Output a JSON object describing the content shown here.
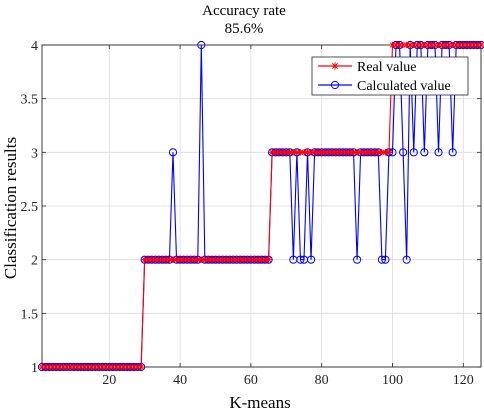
{
  "chart_data": {
    "type": "line",
    "title": "Accuracy rate",
    "subtitle": "85.6%",
    "xlabel": "K-means",
    "ylabel": "Classification results",
    "xlim": [
      1,
      125
    ],
    "ylim": [
      1,
      4
    ],
    "xticks": [
      20,
      40,
      60,
      80,
      100,
      120
    ],
    "yticks": [
      1,
      1.5,
      2,
      2.5,
      3,
      3.5,
      4
    ],
    "ytick_labels": [
      "1",
      "1.5",
      "2",
      "2.5",
      "3",
      "3.5",
      "4"
    ],
    "xtick_labels": [
      "20",
      "40",
      "60",
      "80",
      "100",
      "120"
    ],
    "grid": true,
    "legend_position": "top-right",
    "series": [
      {
        "name": "Real value",
        "color": "#ff0000",
        "marker": "asterisk",
        "x": [
          1,
          2,
          3,
          4,
          5,
          6,
          7,
          8,
          9,
          10,
          11,
          12,
          13,
          14,
          15,
          16,
          17,
          18,
          19,
          20,
          21,
          22,
          23,
          24,
          25,
          26,
          27,
          28,
          29,
          30,
          31,
          32,
          33,
          34,
          35,
          36,
          37,
          38,
          39,
          40,
          41,
          42,
          43,
          44,
          45,
          46,
          47,
          48,
          49,
          50,
          51,
          52,
          53,
          54,
          55,
          56,
          57,
          58,
          59,
          60,
          61,
          62,
          63,
          64,
          65,
          66,
          67,
          68,
          69,
          70,
          71,
          72,
          73,
          74,
          75,
          76,
          77,
          78,
          79,
          80,
          81,
          82,
          83,
          84,
          85,
          86,
          87,
          88,
          89,
          90,
          91,
          92,
          93,
          94,
          95,
          96,
          97,
          98,
          99,
          100,
          101,
          102,
          103,
          104,
          105,
          106,
          107,
          108,
          109,
          110,
          111,
          112,
          113,
          114,
          115,
          116,
          117,
          118,
          119,
          120,
          121,
          122,
          123,
          124,
          125
        ],
        "y": [
          1,
          1,
          1,
          1,
          1,
          1,
          1,
          1,
          1,
          1,
          1,
          1,
          1,
          1,
          1,
          1,
          1,
          1,
          1,
          1,
          1,
          1,
          1,
          1,
          1,
          1,
          1,
          1,
          1,
          2,
          2,
          2,
          2,
          2,
          2,
          2,
          2,
          2,
          2,
          2,
          2,
          2,
          2,
          2,
          2,
          2,
          2,
          2,
          2,
          2,
          2,
          2,
          2,
          2,
          2,
          2,
          2,
          2,
          2,
          2,
          2,
          2,
          2,
          2,
          2,
          3,
          3,
          3,
          3,
          3,
          3,
          3,
          3,
          3,
          3,
          3,
          3,
          3,
          3,
          3,
          3,
          3,
          3,
          3,
          3,
          3,
          3,
          3,
          3,
          3,
          3,
          3,
          3,
          3,
          3,
          3,
          3,
          3,
          3,
          4,
          4,
          4,
          4,
          4,
          4,
          4,
          4,
          4,
          4,
          4,
          4,
          4,
          4,
          4,
          4,
          4,
          4,
          4,
          4,
          4,
          4,
          4,
          4,
          4,
          4
        ]
      },
      {
        "name": "Calculated value",
        "color": "#0000ff",
        "marker": "circle",
        "x": [
          1,
          2,
          3,
          4,
          5,
          6,
          7,
          8,
          9,
          10,
          11,
          12,
          13,
          14,
          15,
          16,
          17,
          18,
          19,
          20,
          21,
          22,
          23,
          24,
          25,
          26,
          27,
          28,
          29,
          30,
          31,
          32,
          33,
          34,
          35,
          36,
          37,
          38,
          39,
          40,
          41,
          42,
          43,
          44,
          45,
          46,
          47,
          48,
          49,
          50,
          51,
          52,
          53,
          54,
          55,
          56,
          57,
          58,
          59,
          60,
          61,
          62,
          63,
          64,
          65,
          66,
          67,
          68,
          69,
          70,
          71,
          72,
          73,
          74,
          75,
          76,
          77,
          78,
          79,
          80,
          81,
          82,
          83,
          84,
          85,
          86,
          87,
          88,
          89,
          90,
          91,
          92,
          93,
          94,
          95,
          96,
          97,
          98,
          99,
          100,
          101,
          102,
          103,
          104,
          105,
          106,
          107,
          108,
          109,
          110,
          111,
          112,
          113,
          114,
          115,
          116,
          117,
          118,
          119,
          120,
          121,
          122,
          123,
          124,
          125
        ],
        "y": [
          1,
          1,
          1,
          1,
          1,
          1,
          1,
          1,
          1,
          1,
          1,
          1,
          1,
          1,
          1,
          1,
          1,
          1,
          1,
          1,
          1,
          1,
          1,
          1,
          1,
          1,
          1,
          1,
          1,
          2,
          2,
          2,
          2,
          2,
          2,
          2,
          2,
          3,
          2,
          2,
          2,
          2,
          2,
          2,
          2,
          4,
          2,
          2,
          2,
          2,
          2,
          2,
          2,
          2,
          2,
          2,
          2,
          2,
          2,
          2,
          2,
          2,
          2,
          2,
          2,
          3,
          3,
          3,
          3,
          3,
          3,
          2,
          3,
          2,
          2,
          3,
          2,
          3,
          3,
          3,
          3,
          3,
          3,
          3,
          3,
          3,
          3,
          3,
          3,
          2,
          3,
          3,
          3,
          3,
          3,
          3,
          2,
          2,
          3,
          3,
          4,
          4,
          3,
          2,
          4,
          3,
          4,
          4,
          3,
          4,
          4,
          4,
          3,
          4,
          4,
          4,
          3,
          4,
          4,
          4,
          4,
          4,
          4,
          4,
          4
        ]
      }
    ]
  }
}
